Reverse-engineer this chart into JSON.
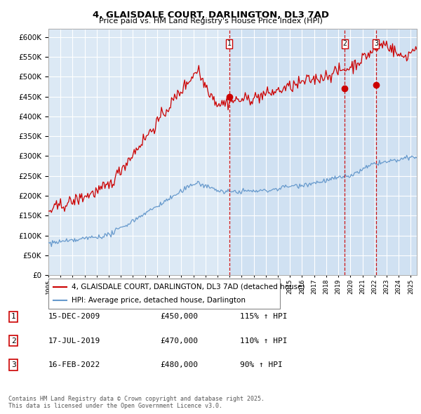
{
  "title": "4, GLAISDALE COURT, DARLINGTON, DL3 7AD",
  "subtitle": "Price paid vs. HM Land Registry's House Price Index (HPI)",
  "red_label": "4, GLAISDALE COURT, DARLINGTON, DL3 7AD (detached house)",
  "blue_label": "HPI: Average price, detached house, Darlington",
  "sale_events": [
    {
      "num": 1,
      "date": "15-DEC-2009",
      "price": "£450,000",
      "pct": "115% ↑ HPI"
    },
    {
      "num": 2,
      "date": "17-JUL-2019",
      "price": "£470,000",
      "pct": "110% ↑ HPI"
    },
    {
      "num": 3,
      "date": "16-FEB-2022",
      "price": "£480,000",
      "pct": "90% ↑ HPI"
    }
  ],
  "ylim": [
    0,
    620000
  ],
  "yticks": [
    0,
    50000,
    100000,
    150000,
    200000,
    250000,
    300000,
    350000,
    400000,
    450000,
    500000,
    550000,
    600000
  ],
  "xlim_start": 1995.0,
  "xlim_end": 2025.5,
  "background_color": "#ffffff",
  "plot_bg_color": "#dce9f5",
  "grid_color": "#ffffff",
  "red_color": "#cc0000",
  "blue_color": "#6699cc",
  "sale1_x": 2009.96,
  "sale2_x": 2019.54,
  "sale3_x": 2022.12,
  "sale1_y": 450000,
  "sale2_y": 470000,
  "sale3_y": 480000,
  "footer": "Contains HM Land Registry data © Crown copyright and database right 2025.\nThis data is licensed under the Open Government Licence v3.0."
}
